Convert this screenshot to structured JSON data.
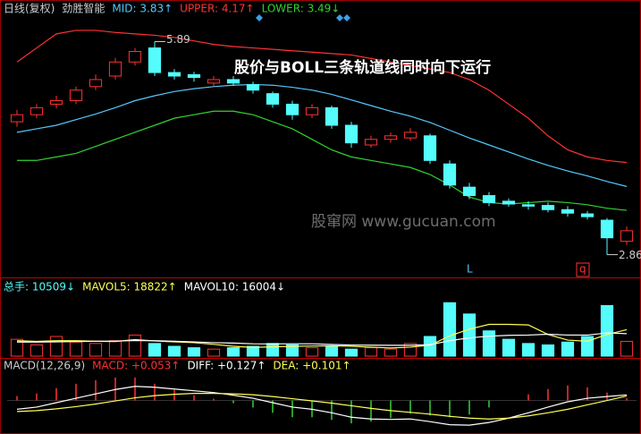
{
  "chart_data": [
    {
      "type": "candlestick",
      "title": "日线(复权)",
      "subtitle": "劲胜智能",
      "annotation": "股价与BOLL三条轨道线同时向下运行",
      "watermark": "股窜网 www.gucuan.com",
      "signals": [
        "L",
        "q"
      ],
      "up_color": "#ff3232",
      "down_color": "#54fcfc",
      "ylim": [
        2.6,
        6.1
      ],
      "open": [
        4.75,
        4.85,
        5.0,
        5.05,
        5.25,
        5.4,
        5.6,
        5.8,
        5.45,
        5.42,
        5.3,
        5.35,
        5.28,
        5.15,
        5.0,
        4.85,
        4.95,
        4.7,
        4.42,
        4.5,
        4.52,
        4.55,
        4.15,
        3.82,
        3.7,
        3.62,
        3.57,
        3.56,
        3.5,
        3.44,
        3.35,
        3.05
      ],
      "high": [
        4.92,
        5.0,
        5.12,
        5.25,
        5.42,
        5.66,
        5.8,
        5.89,
        5.5,
        5.46,
        5.4,
        5.4,
        5.32,
        5.18,
        5.05,
        5.0,
        4.98,
        4.75,
        4.55,
        4.6,
        4.66,
        4.58,
        4.2,
        3.88,
        3.75,
        3.66,
        3.62,
        3.6,
        3.55,
        3.48,
        3.38,
        3.26
      ],
      "low": [
        4.68,
        4.8,
        4.94,
        5.0,
        5.2,
        5.35,
        5.55,
        5.4,
        5.35,
        5.32,
        5.25,
        5.26,
        5.15,
        4.95,
        4.78,
        4.8,
        4.65,
        4.38,
        4.38,
        4.45,
        4.48,
        4.15,
        3.8,
        3.65,
        3.55,
        3.54,
        3.5,
        3.46,
        3.4,
        3.36,
        2.86,
        3.0
      ],
      "close": [
        4.85,
        4.95,
        5.05,
        5.2,
        5.35,
        5.6,
        5.75,
        5.45,
        5.4,
        5.38,
        5.35,
        5.3,
        5.2,
        5.0,
        4.85,
        4.95,
        4.7,
        4.45,
        4.5,
        4.55,
        4.6,
        4.2,
        3.85,
        3.7,
        3.6,
        3.58,
        3.55,
        3.5,
        3.45,
        3.4,
        3.1,
        3.2
      ],
      "series": [
        {
          "name": "MID",
          "legend_label": "MID: 3.83↑",
          "color": "#54c8fc",
          "values": [
            4.6,
            4.65,
            4.7,
            4.78,
            4.86,
            4.95,
            5.05,
            5.12,
            5.18,
            5.22,
            5.25,
            5.27,
            5.28,
            5.27,
            5.24,
            5.2,
            5.14,
            5.06,
            4.98,
            4.9,
            4.83,
            4.74,
            4.63,
            4.52,
            4.42,
            4.32,
            4.22,
            4.13,
            4.05,
            3.98,
            3.9,
            3.83
          ]
        },
        {
          "name": "UPPER",
          "legend_label": "UPPER: 4.17↑",
          "color": "#ff3232",
          "values": [
            5.6,
            5.8,
            6.0,
            6.05,
            6.05,
            6.02,
            6.0,
            5.98,
            5.95,
            5.9,
            5.85,
            5.82,
            5.8,
            5.78,
            5.76,
            5.74,
            5.72,
            5.7,
            5.65,
            5.6,
            5.55,
            5.5,
            5.45,
            5.35,
            5.2,
            5.0,
            4.8,
            4.55,
            4.35,
            4.25,
            4.2,
            4.17
          ]
        },
        {
          "name": "LOWER",
          "legend_label": "LOWER: 3.49↓",
          "color": "#32d232",
          "values": [
            4.2,
            4.2,
            4.25,
            4.3,
            4.4,
            4.5,
            4.6,
            4.7,
            4.8,
            4.85,
            4.9,
            4.9,
            4.85,
            4.75,
            4.65,
            4.5,
            4.35,
            4.25,
            4.2,
            4.15,
            4.1,
            4.0,
            3.85,
            3.68,
            3.6,
            3.58,
            3.6,
            3.62,
            3.6,
            3.57,
            3.52,
            3.49
          ]
        }
      ]
    },
    {
      "type": "volume",
      "ylim": [
        0,
        42000
      ],
      "bars": {
        "name": "总手",
        "legend_label": "总手: 10509↓",
        "color": "#54fcfc",
        "values": [
          12000,
          8000,
          14000,
          10000,
          9000,
          11000,
          15000,
          9000,
          7000,
          6000,
          5000,
          6000,
          7000,
          9000,
          8000,
          6000,
          7000,
          5000,
          6000,
          5000,
          9000,
          14000,
          38000,
          30000,
          18000,
          12000,
          9000,
          8000,
          10000,
          14000,
          36000,
          10509
        ]
      },
      "series": [
        {
          "name": "MAVOL5",
          "legend_label": "MAVOL5: 18822↑",
          "color": "#ffff54",
          "values": [
            11000,
            10500,
            11000,
            11000,
            10600,
            10400,
            11800,
            10800,
            10200,
            9600,
            8400,
            7000,
            6200,
            6600,
            7000,
            7200,
            7400,
            7000,
            6400,
            5800,
            6400,
            7800,
            14400,
            19200,
            22600,
            22600,
            22200,
            15400,
            11400,
            10600,
            15400,
            18822
          ]
        },
        {
          "name": "MAVOL10",
          "legend_label": "MAVOL10: 16004↓",
          "color": "#ffffff",
          "values": [
            10000,
            10000,
            10200,
            10400,
            10600,
            10700,
            11100,
            11000,
            10600,
            10100,
            9600,
            9300,
            8800,
            8700,
            8800,
            8800,
            8300,
            7900,
            7800,
            7700,
            7700,
            8100,
            11000,
            13000,
            14200,
            14800,
            15000,
            15600,
            15000,
            15000,
            16500,
            16004
          ]
        }
      ]
    },
    {
      "type": "macd",
      "title": "MACD(12,26,9)",
      "ylim": [
        -0.7,
        0.6
      ],
      "bars": {
        "name": "MACD",
        "legend_label": "MACD: +0.053↑",
        "up_color": "#ff3232",
        "down_color": "#32d232",
        "values": [
          0.1,
          0.16,
          0.28,
          0.38,
          0.46,
          0.52,
          0.52,
          0.38,
          0.24,
          0.12,
          0.04,
          -0.06,
          -0.16,
          -0.28,
          -0.38,
          -0.38,
          -0.44,
          -0.52,
          -0.48,
          -0.4,
          -0.3,
          -0.34,
          -0.38,
          -0.32,
          -0.16,
          0,
          0.14,
          0.26,
          0.34,
          0.3,
          0.18,
          0.053
        ]
      },
      "series": [
        {
          "name": "DIFF",
          "legend_label": "DIFF: +0.127↑",
          "color": "#ffffff",
          "values": [
            -0.2,
            -0.15,
            -0.05,
            0.05,
            0.15,
            0.25,
            0.32,
            0.3,
            0.26,
            0.22,
            0.18,
            0.12,
            0.05,
            -0.05,
            -0.15,
            -0.2,
            -0.28,
            -0.38,
            -0.42,
            -0.43,
            -0.42,
            -0.48,
            -0.55,
            -0.56,
            -0.5,
            -0.4,
            -0.28,
            -0.15,
            -0.03,
            0.05,
            0.09,
            0.127
          ]
        },
        {
          "name": "DEA",
          "legend_label": "DEA: +0.101↑",
          "color": "#ffff54",
          "values": [
            -0.25,
            -0.23,
            -0.19,
            -0.14,
            -0.08,
            -0.01,
            0.06,
            0.11,
            0.14,
            0.16,
            0.16,
            0.15,
            0.13,
            0.09,
            0.04,
            -0.01,
            -0.06,
            -0.12,
            -0.18,
            -0.23,
            -0.27,
            -0.31,
            -0.36,
            -0.4,
            -0.42,
            -0.4,
            -0.35,
            -0.28,
            -0.2,
            -0.1,
            0.0,
            0.101
          ]
        }
      ]
    }
  ]
}
